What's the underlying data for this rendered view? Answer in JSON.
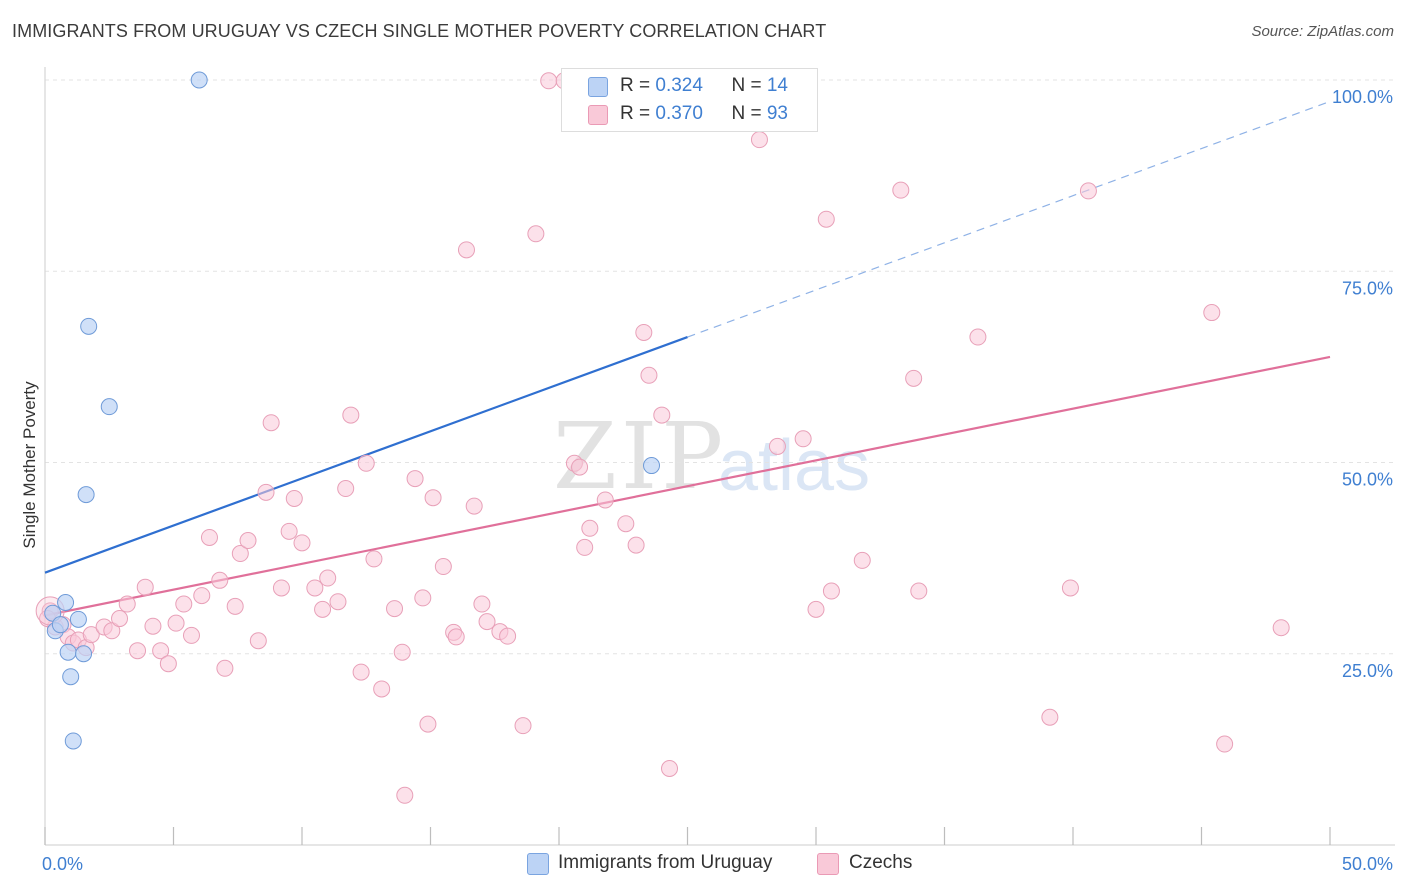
{
  "title": "IMMIGRANTS FROM URUGUAY VS CZECH SINGLE MOTHER POVERTY CORRELATION CHART",
  "source": "Source: ZipAtlas.com",
  "watermark": {
    "zip": "ZIP",
    "atlas": "atlas"
  },
  "legend": {
    "r_label": "R = ",
    "n_label": "N = ",
    "series": [
      {
        "r": "0.324",
        "n": "14"
      },
      {
        "r": "0.370",
        "n": "93"
      }
    ]
  },
  "bottom_legend": [
    "Immigrants from Uruguay",
    "Czechs"
  ],
  "chart_data": {
    "type": "scatter",
    "title": "IMMIGRANTS FROM URUGUAY VS CZECH SINGLE MOTHER POVERTY CORRELATION CHART",
    "xlabel": "",
    "ylabel": "Single Mother Poverty",
    "xlim": [
      0,
      50
    ],
    "ylim": [
      0,
      100
    ],
    "x_tick_labels": [
      "0.0%",
      "50.0%"
    ],
    "y_tick_labels": [
      "25.0%",
      "50.0%",
      "75.0%",
      "100.0%"
    ],
    "y_ticks": [
      25,
      50,
      75,
      100
    ],
    "grid": true,
    "colors": {
      "uruguay": "#5b8fd9",
      "czechs": "#e8729a",
      "uruguay_fill": "#bcd3f5",
      "czechs_fill": "#f9c9d8",
      "tick_label": "#3f7fd1"
    },
    "series": [
      {
        "name": "Immigrants from Uruguay",
        "r": 0.324,
        "n": 14,
        "trend": {
          "x0": 0,
          "y0": 35.6,
          "x1": 25,
          "y1": 66.4,
          "dashed_to_x": 50,
          "dashed_to_y": 97.2
        },
        "points": [
          [
            0.3,
            30.3
          ],
          [
            0.4,
            28.0
          ],
          [
            0.6,
            28.8
          ],
          [
            0.8,
            31.7
          ],
          [
            0.9,
            25.2
          ],
          [
            1.0,
            22.0
          ],
          [
            1.1,
            13.6
          ],
          [
            1.3,
            29.5
          ],
          [
            1.5,
            25.0
          ],
          [
            1.6,
            45.8
          ],
          [
            1.7,
            67.8
          ],
          [
            2.5,
            57.3
          ],
          [
            6.0,
            100.0
          ],
          [
            23.6,
            49.6
          ]
        ]
      },
      {
        "name": "Czechs",
        "r": 0.37,
        "n": 93,
        "trend": {
          "x0": 0,
          "y0": 30.0,
          "x1": 50,
          "y1": 63.8
        },
        "points": [
          [
            0.2,
            30.6
          ],
          [
            0.4,
            28.5
          ],
          [
            0.7,
            28.8
          ],
          [
            0.9,
            27.2
          ],
          [
            1.1,
            26.4
          ],
          [
            1.3,
            26.8
          ],
          [
            1.6,
            25.8
          ],
          [
            1.8,
            27.5
          ],
          [
            2.3,
            28.5
          ],
          [
            2.6,
            28.0
          ],
          [
            2.9,
            29.6
          ],
          [
            3.2,
            31.5
          ],
          [
            3.6,
            25.4
          ],
          [
            3.9,
            33.7
          ],
          [
            4.2,
            28.6
          ],
          [
            4.5,
            25.4
          ],
          [
            4.8,
            23.7
          ],
          [
            5.1,
            29.0
          ],
          [
            5.4,
            31.5
          ],
          [
            5.7,
            27.4
          ],
          [
            6.1,
            32.6
          ],
          [
            6.4,
            40.2
          ],
          [
            6.8,
            34.6
          ],
          [
            7.0,
            23.1
          ],
          [
            7.4,
            31.2
          ],
          [
            7.6,
            38.1
          ],
          [
            7.9,
            39.8
          ],
          [
            8.3,
            26.7
          ],
          [
            8.6,
            46.1
          ],
          [
            8.8,
            55.2
          ],
          [
            9.2,
            33.6
          ],
          [
            9.5,
            41.0
          ],
          [
            9.7,
            45.3
          ],
          [
            10.0,
            39.5
          ],
          [
            10.5,
            33.6
          ],
          [
            10.8,
            30.8
          ],
          [
            11.0,
            34.9
          ],
          [
            11.4,
            31.8
          ],
          [
            11.7,
            46.6
          ],
          [
            11.9,
            56.2
          ],
          [
            12.3,
            22.6
          ],
          [
            12.5,
            49.9
          ],
          [
            12.8,
            37.4
          ],
          [
            13.1,
            20.4
          ],
          [
            13.6,
            30.9
          ],
          [
            13.9,
            25.2
          ],
          [
            14.0,
            6.5
          ],
          [
            14.4,
            47.9
          ],
          [
            14.7,
            32.3
          ],
          [
            14.9,
            15.8
          ],
          [
            15.1,
            45.4
          ],
          [
            15.5,
            36.4
          ],
          [
            15.9,
            27.8
          ],
          [
            16.0,
            27.2
          ],
          [
            16.4,
            77.8
          ],
          [
            16.7,
            44.3
          ],
          [
            17.0,
            31.5
          ],
          [
            17.2,
            29.2
          ],
          [
            17.7,
            27.9
          ],
          [
            18.0,
            27.3
          ],
          [
            18.6,
            15.6
          ],
          [
            19.1,
            79.9
          ],
          [
            19.6,
            99.9
          ],
          [
            20.2,
            99.9
          ],
          [
            20.6,
            49.9
          ],
          [
            20.8,
            49.4
          ],
          [
            21.0,
            38.9
          ],
          [
            21.2,
            41.4
          ],
          [
            21.8,
            45.1
          ],
          [
            22.6,
            42.0
          ],
          [
            23.0,
            39.2
          ],
          [
            23.3,
            67.0
          ],
          [
            23.5,
            61.4
          ],
          [
            24.0,
            56.2
          ],
          [
            24.3,
            10.0
          ],
          [
            27.8,
            92.2
          ],
          [
            28.5,
            52.1
          ],
          [
            29.5,
            53.1
          ],
          [
            30.0,
            30.8
          ],
          [
            30.4,
            81.8
          ],
          [
            30.6,
            33.2
          ],
          [
            31.8,
            37.2
          ],
          [
            33.3,
            85.6
          ],
          [
            33.8,
            61.0
          ],
          [
            34.0,
            33.2
          ],
          [
            36.3,
            66.4
          ],
          [
            39.1,
            16.7
          ],
          [
            39.9,
            33.6
          ],
          [
            40.6,
            85.5
          ],
          [
            45.4,
            69.6
          ],
          [
            45.9,
            13.2
          ],
          [
            48.1,
            28.4
          ],
          [
            0.1,
            29.6
          ]
        ]
      }
    ]
  }
}
